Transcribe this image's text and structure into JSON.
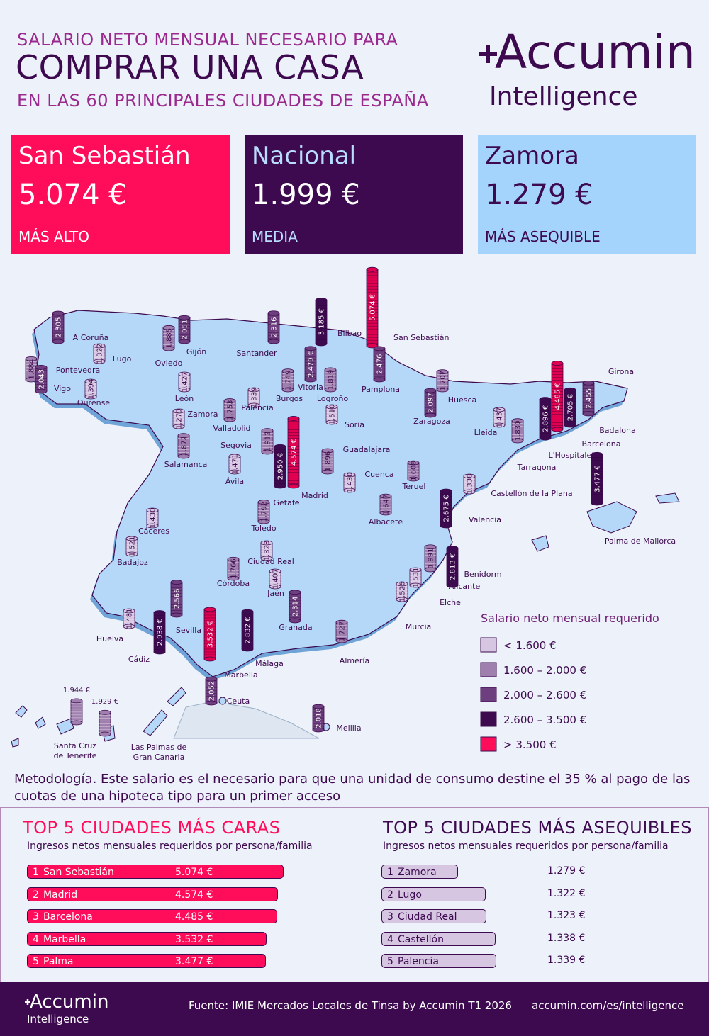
{
  "header": {
    "line1": "SALARIO NETO MENSUAL NECESARIO PARA",
    "line2": "COMPRAR UNA CASA",
    "line3": "EN LAS 60 PRINCIPALES CIUDADES DE ESPAÑA"
  },
  "brand": {
    "name": "Accumin",
    "sub": "Intelligence"
  },
  "cards": [
    {
      "city": "San Sebastián",
      "value": "5.074 €",
      "label": "MÁS ALTO"
    },
    {
      "city": "Nacional",
      "value": "1.999 €",
      "label": "MEDIA"
    },
    {
      "city": "Zamora",
      "value": "1.279 €",
      "label": "MÁS ASEQUIBLE"
    }
  ],
  "colors": {
    "pink": "#ff0d5b",
    "purple_dark": "#3d0a4f",
    "lightblue": "#a4d4fb",
    "map_fill": "#b6d8f8",
    "cat1": "#d6c6e2",
    "cat2": "#9f7fae",
    "cat3": "#6e3f7f",
    "cat4": "#3d0a4f",
    "cat5": "#e0004f"
  },
  "legend": {
    "title": "Salario neto mensual requerido",
    "items": [
      "< 1.600 €",
      "1.600  –  2.000 €",
      "2.000  –  2.600 €",
      "2.600  –  3.500 €",
      "> 3.500 €"
    ]
  },
  "cities": [
    {
      "name": "San Sebastián",
      "value": "5.074 €",
      "num": 5074
    },
    {
      "name": "Bilbao",
      "value": "3.185 €",
      "num": 3185
    },
    {
      "name": "Santander",
      "value": "2.316",
      "num": 2316
    },
    {
      "name": "Gijón",
      "value": "2.051",
      "num": 2051
    },
    {
      "name": "Oviedo",
      "value": "1.885",
      "num": 1885
    },
    {
      "name": "A Coruña",
      "value": "2.305",
      "num": 2305
    },
    {
      "name": "Lugo",
      "value": "1.322",
      "num": 1322
    },
    {
      "name": "Pontevedra",
      "value": "1.884",
      "num": 1884
    },
    {
      "name": "Vigo",
      "value": "2.043",
      "num": 2043
    },
    {
      "name": "Ourense",
      "value": "1.394",
      "num": 1394
    },
    {
      "name": "León",
      "value": "1.427",
      "num": 1427
    },
    {
      "name": "Zamora",
      "value": "1.279",
      "num": 1279
    },
    {
      "name": "Palencia",
      "value": "1.339",
      "num": 1339
    },
    {
      "name": "Valladolid",
      "value": "1.753",
      "num": 1753
    },
    {
      "name": "Burgos",
      "value": "1.749",
      "num": 1749
    },
    {
      "name": "Vitoria",
      "value": "2.479 €",
      "num": 2479
    },
    {
      "name": "Logroño",
      "value": "1.819",
      "num": 1819
    },
    {
      "name": "Pamplona",
      "value": "2.476",
      "num": 2476
    },
    {
      "name": "Soria",
      "value": "1.510",
      "num": 1510
    },
    {
      "name": "Huesca",
      "value": "1.707",
      "num": 1707
    },
    {
      "name": "Zaragoza",
      "value": "2.097",
      "num": 2097
    },
    {
      "name": "Lleida",
      "value": "1.437",
      "num": 1437
    },
    {
      "name": "Girona",
      "value": "2.455",
      "num": 2455
    },
    {
      "name": "Barcelona",
      "value": "4.485 €",
      "num": 4485
    },
    {
      "name": "Badalona",
      "value": "2.705 €",
      "num": 2705
    },
    {
      "name": "L'Hospitalet",
      "value": "2.896 €",
      "num": 2896
    },
    {
      "name": "Tarragona",
      "value": "1.830",
      "num": 1830
    },
    {
      "name": "Salamanca",
      "value": "1.872",
      "num": 1872
    },
    {
      "name": "Segovia",
      "value": "1.912",
      "num": 1912
    },
    {
      "name": "Ávila",
      "value": "1.471",
      "num": 1471
    },
    {
      "name": "Madrid",
      "value": "4.574 €",
      "num": 4574
    },
    {
      "name": "Getafe",
      "value": "2.950 €",
      "num": 2950
    },
    {
      "name": "Guadalajara",
      "value": "1.896",
      "num": 1896
    },
    {
      "name": "Cuenca",
      "value": "1.430",
      "num": 1430
    },
    {
      "name": "Teruel",
      "value": "1.608",
      "num": 1608
    },
    {
      "name": "Castellón de la Plana",
      "value": "1.338",
      "num": 1338
    },
    {
      "name": "Valencia",
      "value": "2.675 €",
      "num": 2675
    },
    {
      "name": "Palma de Mallorca",
      "value": "3.477 €",
      "num": 3477
    },
    {
      "name": "Toledo",
      "value": "1.792",
      "num": 1792
    },
    {
      "name": "Albacete",
      "value": "1.647",
      "num": 1647
    },
    {
      "name": "Cáceres",
      "value": "1.430",
      "num": 1430
    },
    {
      "name": "Badajoz",
      "value": "1.521",
      "num": 1521
    },
    {
      "name": "Ciudad Real",
      "value": "1.323",
      "num": 1323
    },
    {
      "name": "Córdoba",
      "value": "1.766",
      "num": 1766
    },
    {
      "name": "Jaén",
      "value": "1.407",
      "num": 1407
    },
    {
      "name": "Alicante",
      "value": "1.991",
      "num": 1991
    },
    {
      "name": "Benidorm",
      "value": "2.813 €",
      "num": 2813
    },
    {
      "name": "Elche",
      "value": "1.531",
      "num": 1531
    },
    {
      "name": "Murcia",
      "value": "1.526",
      "num": 1526
    },
    {
      "name": "Sevilla",
      "value": "2.566",
      "num": 2566
    },
    {
      "name": "Huelva",
      "value": "1.481",
      "num": 1481
    },
    {
      "name": "Cádiz",
      "value": "2.938 €",
      "num": 2938
    },
    {
      "name": "Marbella",
      "value": "3.532 €",
      "num": 3532
    },
    {
      "name": "Málaga",
      "value": "2.832 €",
      "num": 2832
    },
    {
      "name": "Granada",
      "value": "2.314",
      "num": 2314
    },
    {
      "name": "Almería",
      "value": "1.727",
      "num": 1727
    },
    {
      "name": "Ceuta",
      "value": "2.052",
      "num": 2052
    },
    {
      "name": "Melilla",
      "value": "2.018",
      "num": 2018
    },
    {
      "name": "Santa Cruz de Tenerife",
      "value": "1.944 €",
      "num": 1944
    },
    {
      "name": "Las Palmas de Gran Canaria",
      "value": "1.929 €",
      "num": 1929
    }
  ],
  "methodology": "Metodología. Este salario es el necesario para que una unidad de consumo destine el 35 % al pago de las cuotas de una hipoteca tipo para un primer acceso",
  "top_expensive": {
    "title": "TOP 5 CIUDADES MÁS CARAS",
    "subtitle": "Ingresos netos mensuales requeridos por persona/familia",
    "items": [
      {
        "rank": "1",
        "city": "San Sebastián",
        "value": "5.074 €",
        "num": 5074
      },
      {
        "rank": "2",
        "city": "Madrid",
        "value": "4.574 €",
        "num": 4574
      },
      {
        "rank": "3",
        "city": "Barcelona",
        "value": "4.485 €",
        "num": 4485
      },
      {
        "rank": "4",
        "city": "Marbella",
        "value": "3.532 €",
        "num": 3532
      },
      {
        "rank": "5",
        "city": "Palma",
        "value": "3.477 €",
        "num": 3477
      }
    ]
  },
  "top_affordable": {
    "title": "TOP 5 CIUDADES MÁS ASEQUIBLES",
    "subtitle": "Ingresos netos mensuales requeridos por persona/familia",
    "items": [
      {
        "rank": "1",
        "city": "Zamora",
        "value": "1.279 €",
        "num": 1279
      },
      {
        "rank": "2",
        "city": "Lugo",
        "value": "1.322 €",
        "num": 1322
      },
      {
        "rank": "3",
        "city": "Ciudad Real",
        "value": "1.323 €",
        "num": 1323
      },
      {
        "rank": "4",
        "city": "Castellón",
        "value": "1.338 €",
        "num": 1338
      },
      {
        "rank": "5",
        "city": "Palencia",
        "value": "1.339 €",
        "num": 1339
      }
    ]
  },
  "footer": {
    "brand": "Accumin",
    "sub": "Intelligence",
    "source": "Fuente: IMIE Mercados Locales de Tinsa by Accumin T1 2026",
    "url": "accumin.com/es/intelligence"
  }
}
